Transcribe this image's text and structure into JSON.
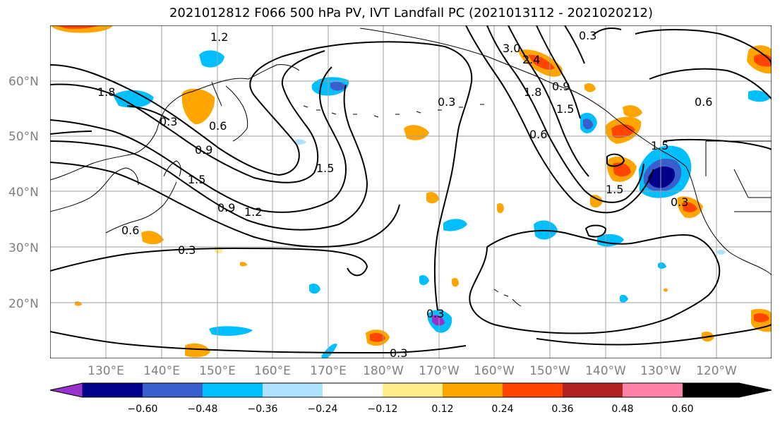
{
  "title": "2021012812 F066 500 hPa PV, IVT Landfall PC (2021013112 - 2021020212)",
  "map": {
    "lat_labels": [
      "60°N",
      "50°N",
      "40°N",
      "30°N",
      "20°N"
    ],
    "lon_labels": [
      "130°E",
      "140°E",
      "150°E",
      "160°E",
      "170°E",
      "180°W",
      "170°W",
      "160°W",
      "150°W",
      "140°W",
      "130°W",
      "120°W"
    ],
    "contour_labels": [
      "1.2",
      "1.8",
      "0.3",
      "0.6",
      "0.9",
      "1.5",
      "0.9",
      "1.2",
      "1.5",
      "0.6",
      "0.3",
      "3.0",
      "2.4",
      "1.8",
      "1.5",
      "0.6",
      "0.6",
      "1.5",
      "1.5",
      "0.3",
      "0.3",
      "0.3",
      "0.3",
      "0.3",
      "0.9"
    ]
  },
  "colorbar": {
    "ticks": [
      "−0.60",
      "−0.48",
      "−0.36",
      "−0.24",
      "−0.12",
      "0.12",
      "0.24",
      "0.36",
      "0.48",
      "0.60"
    ],
    "colors": [
      "#9932cc",
      "#00008b",
      "#3a5fcd",
      "#00bfff",
      "#b0e2ff",
      "#ffffff",
      "#ffec8b",
      "#ffa500",
      "#ff4500",
      "#b22222",
      "#ff82ab"
    ]
  }
}
